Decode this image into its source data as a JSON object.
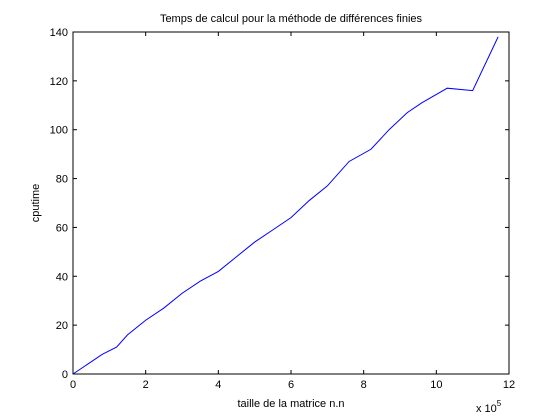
{
  "chart_data": {
    "type": "line",
    "title": "Temps de calcul pour la méthode de différences finies",
    "xlabel": "taille de la matrice n.n",
    "ylabel": "cputime",
    "x_multiplier_base": "x 10",
    "x_multiplier_exp": "5",
    "x_scale": 100000,
    "xlim": [
      0,
      12
    ],
    "ylim": [
      0,
      140
    ],
    "xticks": [
      "0",
      "2",
      "4",
      "6",
      "8",
      "10",
      "12"
    ],
    "yticks": [
      "0",
      "20",
      "40",
      "60",
      "80",
      "100",
      "120",
      "140"
    ],
    "grid": false,
    "line_color": "#0000ff",
    "series": [
      {
        "x": [
          0,
          0.2,
          0.5,
          0.8,
          1.2,
          1.5,
          2.0,
          2.5,
          3.0,
          3.5,
          4.0,
          4.5,
          5.0,
          5.5,
          6.0,
          6.5,
          7.0,
          7.6,
          8.2,
          8.7,
          9.2,
          9.6,
          10.3,
          11.0,
          11.7
        ],
        "y": [
          0,
          2,
          5,
          8,
          11,
          16,
          22,
          27,
          33,
          38,
          42,
          48,
          54,
          59,
          64,
          71,
          77,
          87,
          92,
          100,
          107,
          111,
          117,
          116,
          138
        ]
      }
    ]
  }
}
